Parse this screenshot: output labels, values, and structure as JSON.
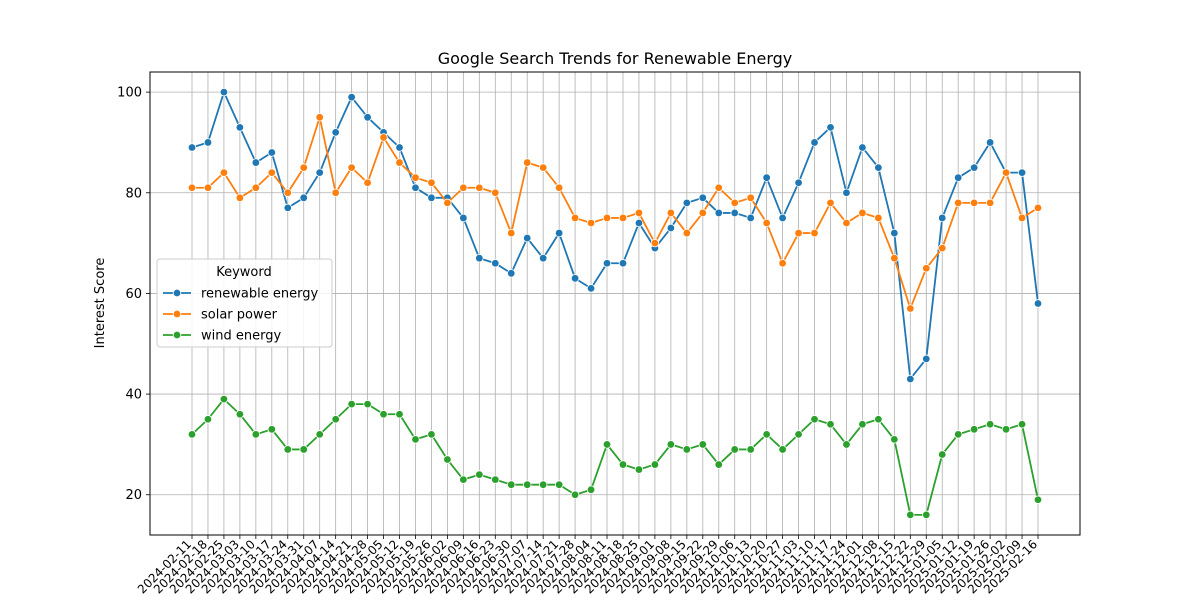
{
  "chart_data": {
    "type": "line",
    "title": "Google Search Trends for Renewable Energy",
    "xlabel": "",
    "ylabel": "Interest Score",
    "ylim": [
      12,
      104
    ],
    "yticks": [
      20,
      40,
      60,
      80,
      100
    ],
    "grid": true,
    "legend": {
      "title": "Keyword",
      "placement": "center-left"
    },
    "x": [
      "2024-02-11",
      "2024-02-18",
      "2024-02-25",
      "2024-03-03",
      "2024-03-10",
      "2024-03-17",
      "2024-03-24",
      "2024-03-31",
      "2024-04-07",
      "2024-04-14",
      "2024-04-21",
      "2024-04-28",
      "2024-05-05",
      "2024-05-12",
      "2024-05-19",
      "2024-05-26",
      "2024-06-02",
      "2024-06-09",
      "2024-06-16",
      "2024-06-23",
      "2024-06-30",
      "2024-07-07",
      "2024-07-14",
      "2024-07-21",
      "2024-07-28",
      "2024-08-04",
      "2024-08-11",
      "2024-08-18",
      "2024-08-25",
      "2024-09-01",
      "2024-09-08",
      "2024-09-15",
      "2024-09-22",
      "2024-09-29",
      "2024-10-06",
      "2024-10-13",
      "2024-10-20",
      "2024-10-27",
      "2024-11-03",
      "2024-11-10",
      "2024-11-17",
      "2024-11-24",
      "2024-12-01",
      "2024-12-08",
      "2024-12-15",
      "2024-12-22",
      "2024-12-29",
      "2025-01-05",
      "2025-01-12",
      "2025-01-19",
      "2025-01-26",
      "2025-02-02",
      "2025-02-09",
      "2025-02-16"
    ],
    "series": [
      {
        "name": "renewable energy",
        "color": "#1f77b4",
        "values": [
          89,
          90,
          100,
          93,
          86,
          88,
          77,
          79,
          84,
          92,
          99,
          95,
          92,
          89,
          81,
          79,
          79,
          75,
          67,
          66,
          64,
          71,
          67,
          72,
          63,
          61,
          66,
          66,
          74,
          69,
          73,
          78,
          79,
          76,
          76,
          75,
          83,
          75,
          82,
          90,
          93,
          80,
          89,
          85,
          72,
          43,
          47,
          75,
          83,
          85,
          90,
          84,
          84,
          58
        ]
      },
      {
        "name": "solar power",
        "color": "#ff7f0e",
        "values": [
          81,
          81,
          84,
          79,
          81,
          84,
          80,
          85,
          95,
          80,
          85,
          82,
          91,
          86,
          83,
          82,
          78,
          81,
          81,
          80,
          72,
          86,
          85,
          81,
          75,
          74,
          75,
          75,
          76,
          70,
          76,
          72,
          76,
          81,
          78,
          79,
          74,
          66,
          72,
          72,
          78,
          74,
          76,
          75,
          67,
          57,
          65,
          69,
          78,
          78,
          78,
          84,
          75,
          77
        ]
      },
      {
        "name": "wind energy",
        "color": "#2ca02c",
        "values": [
          32,
          35,
          39,
          36,
          32,
          33,
          29,
          29,
          32,
          35,
          38,
          38,
          36,
          36,
          31,
          32,
          27,
          23,
          24,
          23,
          22,
          22,
          22,
          22,
          20,
          21,
          30,
          26,
          25,
          26,
          30,
          29,
          30,
          26,
          29,
          29,
          32,
          29,
          32,
          35,
          34,
          30,
          34,
          35,
          31,
          16,
          16,
          28,
          32,
          33,
          34,
          33,
          34,
          19
        ]
      }
    ]
  }
}
